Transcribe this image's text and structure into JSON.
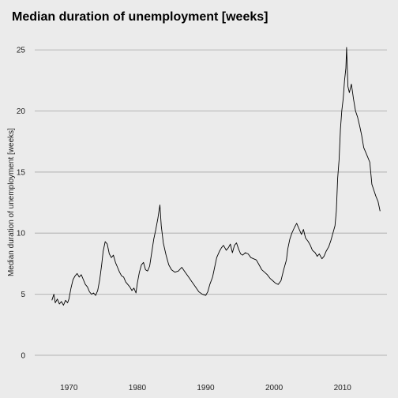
{
  "chart_data": {
    "type": "line",
    "title": "Median duration of unemployment [weeks]",
    "xlabel": "",
    "ylabel": "Median duration of unemployment [weeks]",
    "xlim": [
      1965,
      2016.5
    ],
    "ylim": [
      -1.3,
      26.5
    ],
    "x_ticks": [
      1970,
      1980,
      1990,
      2000,
      2010
    ],
    "y_ticks": [
      0,
      5,
      10,
      15,
      20,
      25
    ],
    "grid": {
      "horizontal": true,
      "vertical": false
    },
    "legend": "none",
    "colors": {
      "background": "#ebebeb",
      "grid": "#bbbbbb",
      "line": "#000000"
    },
    "series": [
      {
        "x": [
          1967.5,
          1967.8,
          1968.0,
          1968.3,
          1968.6,
          1968.9,
          1969.2,
          1969.5,
          1969.8,
          1970.0,
          1970.3,
          1970.6,
          1970.9,
          1971.2,
          1971.5,
          1971.8,
          1972.1,
          1972.4,
          1972.7,
          1973.0,
          1973.3,
          1973.6,
          1973.9,
          1974.2,
          1974.5,
          1974.8,
          1975.0,
          1975.3,
          1975.6,
          1975.9,
          1976.2,
          1976.5,
          1976.8,
          1977.1,
          1977.4,
          1977.7,
          1978.0,
          1978.3,
          1978.6,
          1978.9,
          1979.2,
          1979.5,
          1979.8,
          1980.0,
          1980.3,
          1980.6,
          1980.9,
          1981.2,
          1981.5,
          1981.8,
          1982.1,
          1982.4,
          1982.7,
          1983.0,
          1983.3,
          1983.5,
          1983.8,
          1984.2,
          1984.6,
          1985.0,
          1985.5,
          1986.0,
          1986.5,
          1987.0,
          1987.5,
          1988.0,
          1988.5,
          1989.0,
          1989.5,
          1990.0,
          1990.3,
          1990.6,
          1991.0,
          1991.3,
          1991.6,
          1992.0,
          1992.3,
          1992.6,
          1993.0,
          1993.3,
          1993.6,
          1993.9,
          1994.2,
          1994.5,
          1994.8,
          1995.1,
          1995.4,
          1995.8,
          1996.2,
          1996.6,
          1997.0,
          1997.4,
          1997.8,
          1998.2,
          1998.6,
          1999.0,
          1999.4,
          1999.8,
          2000.2,
          2000.6,
          2001.0,
          2001.4,
          2001.8,
          2002.0,
          2002.3,
          2002.6,
          2003.0,
          2003.3,
          2003.6,
          2004.0,
          2004.3,
          2004.6,
          2005.0,
          2005.3,
          2005.6,
          2006.0,
          2006.3,
          2006.6,
          2007.0,
          2007.3,
          2007.6,
          2008.0,
          2008.3,
          2008.6,
          2008.9,
          2009.1,
          2009.3,
          2009.5,
          2009.7,
          2009.9,
          2010.1,
          2010.3,
          2010.5,
          2010.6,
          2010.8,
          2011.0,
          2011.3,
          2011.6,
          2011.9,
          2012.2,
          2012.5,
          2012.8,
          2013.1,
          2013.4,
          2013.7,
          2014.0,
          2014.3,
          2014.6,
          2014.9,
          2015.2,
          2015.5
        ],
        "y": [
          4.5,
          5.0,
          4.3,
          4.6,
          4.2,
          4.4,
          4.1,
          4.5,
          4.3,
          4.6,
          5.5,
          6.2,
          6.5,
          6.7,
          6.4,
          6.6,
          6.2,
          5.8,
          5.6,
          5.2,
          5.0,
          5.1,
          4.9,
          5.3,
          6.2,
          7.5,
          8.5,
          9.3,
          9.1,
          8.3,
          8.0,
          8.2,
          7.6,
          7.2,
          6.8,
          6.5,
          6.4,
          6.0,
          5.8,
          5.6,
          5.3,
          5.5,
          5.1,
          5.9,
          6.8,
          7.4,
          7.6,
          7.0,
          6.9,
          7.3,
          8.4,
          9.5,
          10.3,
          11.2,
          12.3,
          10.6,
          9.2,
          8.2,
          7.4,
          7.0,
          6.8,
          6.9,
          7.2,
          6.8,
          6.4,
          6.0,
          5.6,
          5.2,
          5.0,
          4.9,
          5.2,
          5.8,
          6.4,
          7.2,
          8.0,
          8.5,
          8.8,
          9.0,
          8.6,
          8.8,
          9.1,
          8.4,
          9.0,
          9.2,
          8.7,
          8.3,
          8.2,
          8.4,
          8.3,
          8.0,
          7.9,
          7.8,
          7.4,
          7.0,
          6.8,
          6.6,
          6.3,
          6.1,
          5.9,
          5.8,
          6.1,
          7.0,
          7.8,
          8.7,
          9.5,
          10.0,
          10.5,
          10.8,
          10.4,
          9.9,
          10.3,
          9.6,
          9.3,
          9.0,
          8.6,
          8.4,
          8.1,
          8.3,
          7.9,
          8.1,
          8.5,
          8.9,
          9.4,
          10.0,
          10.6,
          11.8,
          14.5,
          16.0,
          18.5,
          20.0,
          21.0,
          22.5,
          23.5,
          25.2,
          22.0,
          21.5,
          22.2,
          21.0,
          20.0,
          19.5,
          18.8,
          18.0,
          17.0,
          16.6,
          16.2,
          15.8,
          14.0,
          13.5,
          13.0,
          12.6,
          11.8
        ]
      }
    ]
  }
}
